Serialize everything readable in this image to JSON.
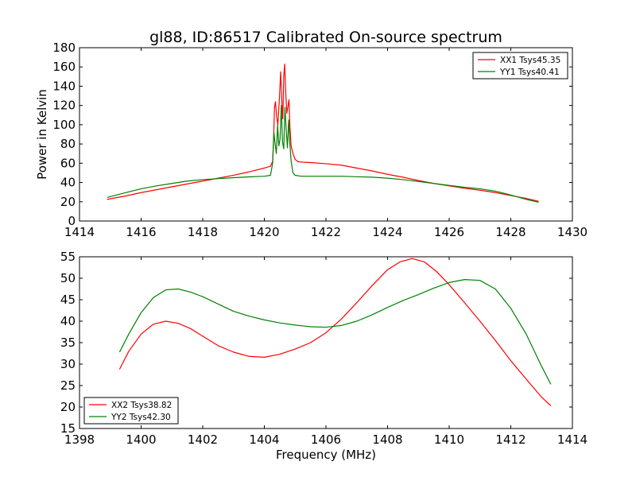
{
  "figure_title": "gl88, ID:86517 Calibrated On-source spectrum",
  "chart_data": [
    {
      "type": "line",
      "title": "gl88, ID:86517 Calibrated On-source spectrum",
      "xlabel": "",
      "ylabel": "Power in Kelvin",
      "xlim": [
        1414,
        1430
      ],
      "ylim": [
        0,
        180
      ],
      "xticks": [
        1414,
        1416,
        1418,
        1420,
        1422,
        1424,
        1426,
        1428,
        1430
      ],
      "yticks": [
        0,
        20,
        40,
        60,
        80,
        100,
        120,
        140,
        160,
        180
      ],
      "grid": false,
      "legend_position": "top-right",
      "series": [
        {
          "name": "XX1 Tsys45.35",
          "color": "#ff0000",
          "points": [
            [
              1414.9,
              22.5
            ],
            [
              1415.5,
              26
            ],
            [
              1416,
              29.5
            ],
            [
              1416.5,
              32.5
            ],
            [
              1417,
              35.5
            ],
            [
              1417.5,
              38.5
            ],
            [
              1418,
              41.5
            ],
            [
              1418.5,
              44.5
            ],
            [
              1419,
              47.5
            ],
            [
              1419.5,
              51
            ],
            [
              1420,
              55
            ],
            [
              1420.2,
              57
            ],
            [
              1420.27,
              62
            ],
            [
              1420.3,
              85
            ],
            [
              1420.33,
              118
            ],
            [
              1420.36,
              124
            ],
            [
              1420.4,
              108
            ],
            [
              1420.44,
              100
            ],
            [
              1420.49,
              128
            ],
            [
              1420.53,
              155
            ],
            [
              1420.57,
              122
            ],
            [
              1420.6,
              106
            ],
            [
              1420.63,
              150
            ],
            [
              1420.66,
              163
            ],
            [
              1420.7,
              130
            ],
            [
              1420.73,
              112
            ],
            [
              1420.77,
              120
            ],
            [
              1420.8,
              126
            ],
            [
              1420.83,
              98
            ],
            [
              1420.87,
              78
            ],
            [
              1420.93,
              70
            ],
            [
              1421.0,
              64
            ],
            [
              1421.1,
              61.5
            ],
            [
              1421.3,
              61
            ],
            [
              1421.6,
              60.5
            ],
            [
              1422,
              59.5
            ],
            [
              1422.5,
              58
            ],
            [
              1423,
              55
            ],
            [
              1423.5,
              52
            ],
            [
              1424,
              48.5
            ],
            [
              1424.5,
              45.5
            ],
            [
              1425,
              42
            ],
            [
              1425.5,
              39
            ],
            [
              1426,
              36.5
            ],
            [
              1426.5,
              34
            ],
            [
              1427,
              32
            ],
            [
              1427.5,
              29.5
            ],
            [
              1428,
              26.5
            ],
            [
              1428.5,
              23.5
            ],
            [
              1428.9,
              20.5
            ]
          ]
        },
        {
          "name": "YY1 Tsys40.41",
          "color": "#008000",
          "points": [
            [
              1414.9,
              24.5
            ],
            [
              1415.5,
              29.5
            ],
            [
              1416,
              33.5
            ],
            [
              1416.5,
              36.5
            ],
            [
              1417,
              39
            ],
            [
              1417.5,
              41.5
            ],
            [
              1418,
              43
            ],
            [
              1418.5,
              44
            ],
            [
              1419,
              45
            ],
            [
              1419.5,
              45.8
            ],
            [
              1420,
              46.5
            ],
            [
              1420.2,
              47.5
            ],
            [
              1420.27,
              60
            ],
            [
              1420.31,
              92
            ],
            [
              1420.35,
              80
            ],
            [
              1420.39,
              70
            ],
            [
              1420.43,
              100
            ],
            [
              1420.47,
              78
            ],
            [
              1420.51,
              85
            ],
            [
              1420.55,
              120
            ],
            [
              1420.59,
              82
            ],
            [
              1420.63,
              75
            ],
            [
              1420.67,
              118
            ],
            [
              1420.71,
              95
            ],
            [
              1420.75,
              76
            ],
            [
              1420.79,
              105
            ],
            [
              1420.83,
              80
            ],
            [
              1420.87,
              62
            ],
            [
              1420.93,
              50
            ],
            [
              1421.0,
              47.5
            ],
            [
              1421.2,
              46.5
            ],
            [
              1421.6,
              46.5
            ],
            [
              1422,
              46.5
            ],
            [
              1422.5,
              46.5
            ],
            [
              1423,
              46
            ],
            [
              1423.5,
              45.5
            ],
            [
              1424,
              44.5
            ],
            [
              1424.5,
              43
            ],
            [
              1425,
              41
            ],
            [
              1425.5,
              39
            ],
            [
              1426,
              37
            ],
            [
              1426.5,
              35
            ],
            [
              1427,
              33.5
            ],
            [
              1427.5,
              31
            ],
            [
              1428,
              27
            ],
            [
              1428.5,
              22.5
            ],
            [
              1428.9,
              19.5
            ]
          ]
        }
      ]
    },
    {
      "type": "line",
      "title": "",
      "xlabel": "Frequency (MHz)",
      "ylabel": "",
      "xlim": [
        1398,
        1414
      ],
      "ylim": [
        15,
        55
      ],
      "xticks": [
        1398,
        1400,
        1402,
        1404,
        1406,
        1408,
        1410,
        1412,
        1414
      ],
      "yticks": [
        15,
        20,
        25,
        30,
        35,
        40,
        45,
        50,
        55
      ],
      "grid": false,
      "legend_position": "bottom-left",
      "series": [
        {
          "name": "XX2 Tsys38.82",
          "color": "#ff0000",
          "points": [
            [
              1399.3,
              28.8
            ],
            [
              1399.6,
              33
            ],
            [
              1400,
              37
            ],
            [
              1400.4,
              39.3
            ],
            [
              1400.8,
              40
            ],
            [
              1401.2,
              39.5
            ],
            [
              1401.6,
              38.3
            ],
            [
              1402,
              36.5
            ],
            [
              1402.5,
              34.3
            ],
            [
              1403,
              32.8
            ],
            [
              1403.5,
              31.8
            ],
            [
              1404,
              31.6
            ],
            [
              1404.5,
              32.3
            ],
            [
              1405,
              33.5
            ],
            [
              1405.5,
              35
            ],
            [
              1406,
              37.3
            ],
            [
              1406.5,
              40.5
            ],
            [
              1407,
              44.3
            ],
            [
              1407.5,
              48.3
            ],
            [
              1408,
              52
            ],
            [
              1408.4,
              53.8
            ],
            [
              1408.8,
              54.6
            ],
            [
              1409.2,
              53.8
            ],
            [
              1409.6,
              51.5
            ],
            [
              1410,
              48.5
            ],
            [
              1410.5,
              44.3
            ],
            [
              1411,
              40
            ],
            [
              1411.5,
              35.5
            ],
            [
              1412,
              30.8
            ],
            [
              1412.5,
              26.5
            ],
            [
              1413,
              22.3
            ],
            [
              1413.3,
              20.3
            ]
          ]
        },
        {
          "name": "YY2 Tsys42.30",
          "color": "#008000",
          "points": [
            [
              1399.3,
              32.8
            ],
            [
              1399.6,
              37
            ],
            [
              1400,
              42
            ],
            [
              1400.4,
              45.5
            ],
            [
              1400.8,
              47.3
            ],
            [
              1401.2,
              47.5
            ],
            [
              1401.6,
              46.8
            ],
            [
              1402,
              45.7
            ],
            [
              1402.5,
              44
            ],
            [
              1403,
              42.3
            ],
            [
              1403.5,
              41.2
            ],
            [
              1404,
              40.3
            ],
            [
              1404.5,
              39.6
            ],
            [
              1405,
              39.1
            ],
            [
              1405.5,
              38.7
            ],
            [
              1406,
              38.6
            ],
            [
              1406.5,
              39
            ],
            [
              1407,
              40
            ],
            [
              1407.5,
              41.5
            ],
            [
              1408,
              43.2
            ],
            [
              1408.5,
              44.8
            ],
            [
              1409,
              46.2
            ],
            [
              1409.5,
              47.7
            ],
            [
              1410,
              49
            ],
            [
              1410.5,
              49.7
            ],
            [
              1411,
              49.5
            ],
            [
              1411.5,
              47.5
            ],
            [
              1412,
              43
            ],
            [
              1412.5,
              37
            ],
            [
              1413,
              29.5
            ],
            [
              1413.3,
              25.3
            ]
          ]
        }
      ]
    }
  ]
}
